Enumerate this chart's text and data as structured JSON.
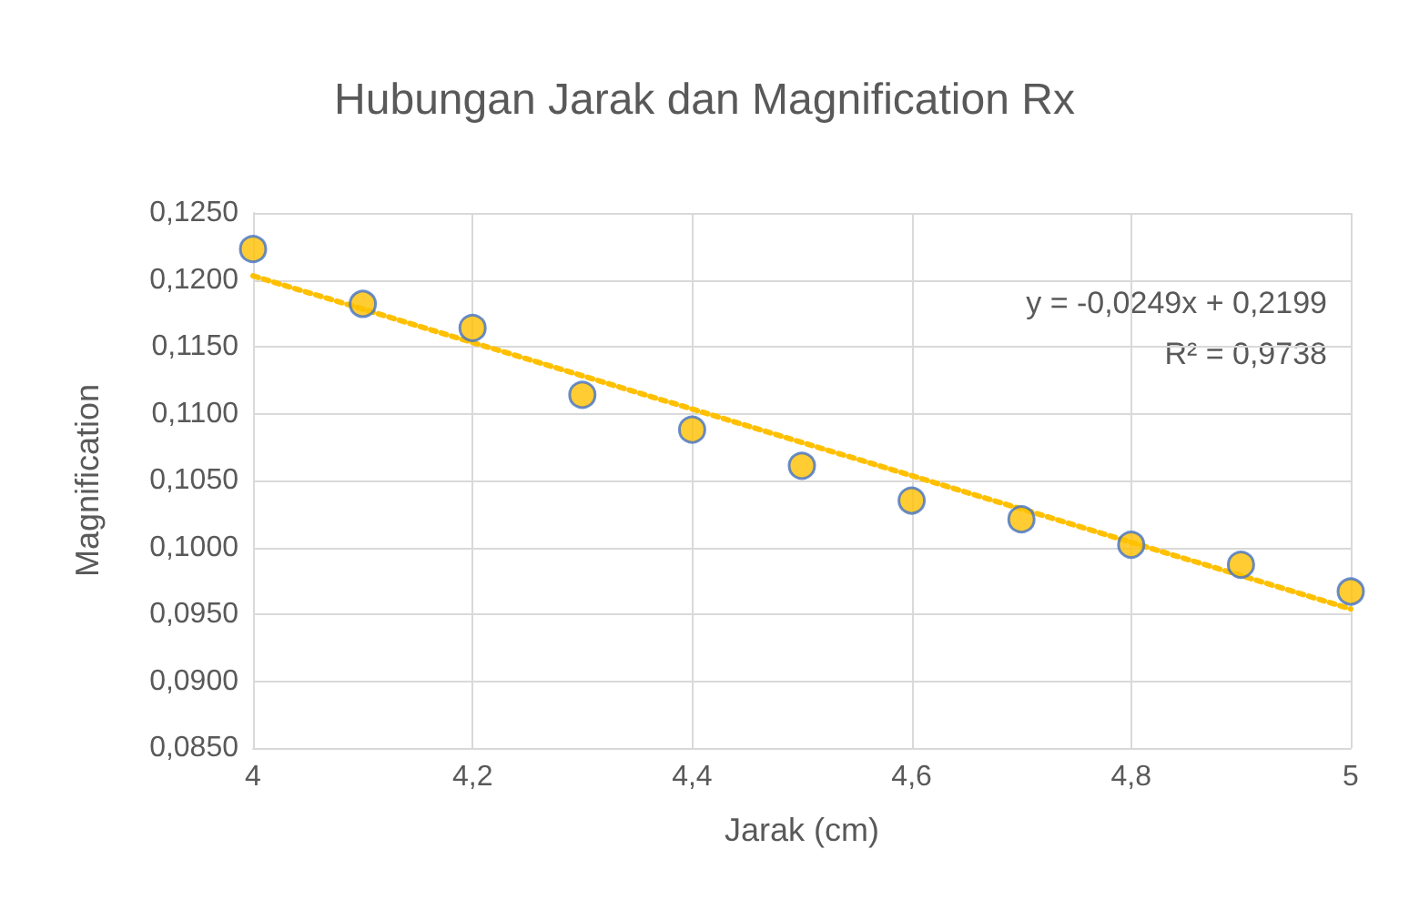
{
  "chart_data": {
    "type": "scatter",
    "title": "Hubungan Jarak dan Magnification Rx",
    "xlabel": "Jarak (cm)",
    "ylabel": "Magnification",
    "x": [
      4,
      4.1,
      4.2,
      4.3,
      4.4,
      4.5,
      4.6,
      4.7,
      4.8,
      4.9,
      5
    ],
    "series": [
      {
        "color": "#ffc000",
        "values": [
          0.1223,
          0.1182,
          0.1164,
          0.1114,
          0.1088,
          0.1061,
          0.1035,
          0.1021,
          0.1002,
          0.0987,
          0.0967
        ]
      },
      {
        "type": "line",
        "color": "#ffc000",
        "x": [
          4,
          5
        ],
        "values": [
          0.1203,
          0.0954
        ],
        "line_style": "dotted",
        "marker": "none"
      }
    ],
    "marker": "circle",
    "grid": true,
    "xlim": [
      4,
      5
    ],
    "xticks": [
      4,
      {
        "value": 4.2,
        "label": "4,2"
      },
      {
        "value": 4.4,
        "label": "4,4"
      },
      {
        "value": 4.6,
        "label": "4,6"
      },
      {
        "value": 4.8,
        "label": "4,8"
      },
      5
    ],
    "ylim": [
      0.085,
      0.125
    ],
    "yticks": [
      {
        "value": 0.085,
        "label": "0,0850"
      },
      {
        "value": 0.09,
        "label": "0,0900"
      },
      {
        "value": 0.095,
        "label": "0,0950"
      },
      {
        "value": 0.1,
        "label": "0,1000"
      },
      {
        "value": 0.105,
        "label": "0,1050"
      },
      {
        "value": 0.11,
        "label": "0,1100"
      },
      {
        "value": 0.115,
        "label": "0,1150"
      },
      {
        "value": 0.12,
        "label": "0,1200"
      },
      {
        "value": 0.125,
        "label": "0,1250"
      }
    ],
    "annotations": [
      "y = -0,0249x + 0,2199",
      "R² = 0,9738"
    ]
  }
}
